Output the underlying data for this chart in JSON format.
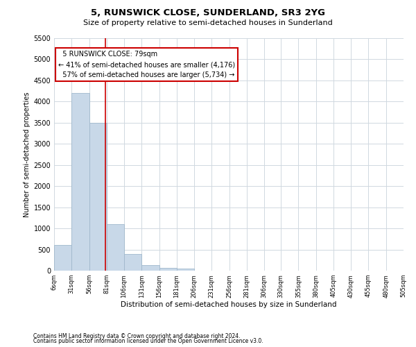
{
  "title": "5, RUNSWICK CLOSE, SUNDERLAND, SR3 2YG",
  "subtitle": "Size of property relative to semi-detached houses in Sunderland",
  "xlabel": "Distribution of semi-detached houses by size in Sunderland",
  "ylabel": "Number of semi-detached properties",
  "footnote1": "Contains HM Land Registry data © Crown copyright and database right 2024.",
  "footnote2": "Contains public sector information licensed under the Open Government Licence v3.0.",
  "bar_edges": [
    6,
    31,
    56,
    81,
    106,
    131,
    156,
    181,
    206,
    231,
    256,
    281,
    306,
    330,
    355,
    380,
    405,
    430,
    455,
    480,
    505
  ],
  "bar_heights": [
    600,
    4200,
    3500,
    1100,
    400,
    130,
    60,
    55,
    0,
    0,
    0,
    0,
    0,
    0,
    0,
    0,
    0,
    0,
    0,
    0
  ],
  "bar_color": "#c8d8e8",
  "bar_edgecolor": "#a0b8cc",
  "subject_value": 79,
  "subject_label": "5 RUNSWICK CLOSE: 79sqm",
  "smaller_pct": "41%",
  "smaller_count": "4,176",
  "larger_pct": "57%",
  "larger_count": "5,734",
  "vline_color": "#cc0000",
  "annotation_box_color": "#cc0000",
  "ylim": [
    0,
    5500
  ],
  "yticks": [
    0,
    500,
    1000,
    1500,
    2000,
    2500,
    3000,
    3500,
    4000,
    4500,
    5000,
    5500
  ],
  "tick_labels": [
    "6sqm",
    "31sqm",
    "56sqm",
    "81sqm",
    "106sqm",
    "131sqm",
    "156sqm",
    "181sqm",
    "206sqm",
    "231sqm",
    "256sqm",
    "281sqm",
    "306sqm",
    "330sqm",
    "355sqm",
    "380sqm",
    "405sqm",
    "430sqm",
    "455sqm",
    "480sqm",
    "505sqm"
  ],
  "bg_color": "#ffffff",
  "grid_color": "#d0d8e0"
}
